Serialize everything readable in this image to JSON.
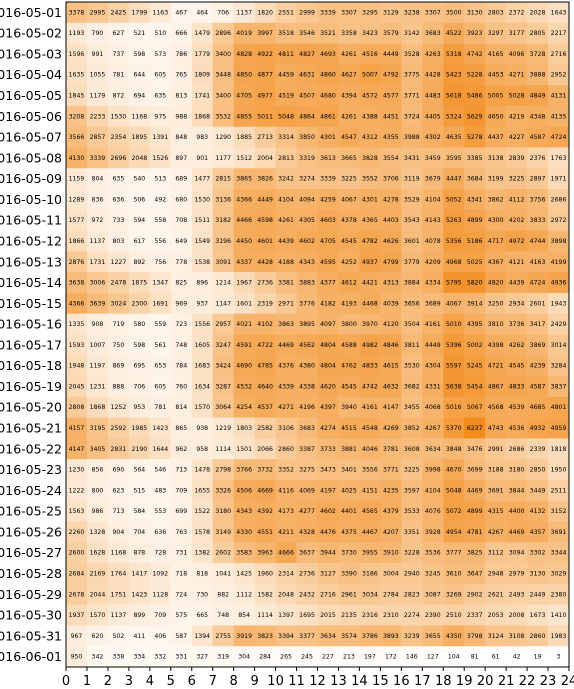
{
  "chart_data": {
    "type": "heatmap",
    "title": "",
    "xlabel": "",
    "ylabel": "",
    "x_ticks": [
      0,
      1,
      2,
      3,
      4,
      5,
      6,
      7,
      8,
      9,
      10,
      11,
      12,
      13,
      14,
      15,
      16,
      17,
      18,
      19,
      20,
      21,
      22,
      23,
      24
    ],
    "xlim": [
      0,
      24
    ],
    "color_scale": {
      "low": "#ffffff",
      "high": "#f28a1a",
      "min": 0,
      "max": 6300
    },
    "rows": [
      "2016-05-01",
      "2016-05-02",
      "2016-05-03",
      "2016-05-04",
      "2016-05-05",
      "2016-05-06",
      "2016-05-07",
      "2016-05-08",
      "2016-05-09",
      "2016-05-10",
      "2016-05-11",
      "2016-05-12",
      "2016-05-13",
      "2016-05-14",
      "2016-05-15",
      "2016-05-16",
      "2016-05-17",
      "2016-05-18",
      "2016-05-19",
      "2016-05-20",
      "2016-05-21",
      "2016-05-22",
      "2016-05-23",
      "2016-05-24",
      "2016-05-25",
      "2016-05-26",
      "2016-05-27",
      "2016-05-28",
      "2016-05-29",
      "2016-05-30",
      "2016-05-31",
      "2016-06-01"
    ],
    "values": [
      [
        3378,
        2995,
        2425,
        1799,
        1163,
        467,
        464,
        706,
        1137,
        1820,
        2551,
        2999,
        3339,
        3307,
        3295,
        3129,
        3238,
        3307,
        3500,
        3130,
        2803,
        2372,
        2028,
        1643
      ],
      [
        1193,
        790,
        627,
        521,
        510,
        666,
        1479,
        2896,
        4019,
        3997,
        3518,
        3546,
        3521,
        3358,
        3423,
        3579,
        3142,
        3683,
        4522,
        3923,
        3297,
        3177,
        2805,
        2217
      ],
      [
        1596,
        991,
        737,
        598,
        573,
        786,
        1779,
        3400,
        4828,
        4922,
        4811,
        4827,
        4693,
        4261,
        4516,
        4449,
        3528,
        4263,
        5318,
        4742,
        4165,
        4096,
        3728,
        2716
      ],
      [
        1635,
        1055,
        781,
        644,
        605,
        765,
        1809,
        3448,
        4850,
        4877,
        4459,
        4631,
        4860,
        4627,
        5007,
        4792,
        3775,
        4428,
        5423,
        5228,
        4453,
        4271,
        3888,
        2952
      ],
      [
        1845,
        1179,
        872,
        694,
        635,
        813,
        1741,
        3400,
        4705,
        4977,
        4519,
        4507,
        4680,
        4394,
        4572,
        4577,
        3771,
        4483,
        5618,
        5486,
        5005,
        5028,
        4849,
        4131
      ],
      [
        3208,
        2233,
        1530,
        1168,
        975,
        988,
        1868,
        3532,
        4855,
        5011,
        5048,
        4864,
        4861,
        4261,
        4388,
        4451,
        3724,
        4405,
        5324,
        5629,
        4650,
        4219,
        4348,
        4135
      ],
      [
        3566,
        2857,
        2354,
        1895,
        1391,
        848,
        983,
        1290,
        1885,
        2713,
        3314,
        3850,
        4301,
        4547,
        4312,
        4355,
        3988,
        4302,
        4635,
        5278,
        4437,
        4227,
        4587,
        4724
      ],
      [
        4130,
        3339,
        2696,
        2048,
        1526,
        897,
        901,
        1177,
        1512,
        2004,
        2813,
        3319,
        3613,
        3665,
        3828,
        3554,
        3431,
        3459,
        3595,
        3385,
        3138,
        2839,
        2376,
        1763
      ],
      [
        1159,
        804,
        635,
        540,
        513,
        689,
        1477,
        2815,
        3865,
        3826,
        3242,
        3274,
        3339,
        3225,
        3552,
        3706,
        3119,
        3679,
        4447,
        3684,
        3199,
        3225,
        2897,
        1971
      ],
      [
        1289,
        836,
        636,
        506,
        492,
        680,
        1530,
        3136,
        4366,
        4449,
        4104,
        4094,
        4259,
        4067,
        4301,
        4278,
        3529,
        4104,
        5052,
        4341,
        3862,
        4112,
        3756,
        2686
      ],
      [
        1577,
        972,
        733,
        594,
        558,
        708,
        1511,
        3182,
        4466,
        4598,
        4261,
        4305,
        4603,
        4378,
        4365,
        4403,
        3543,
        4143,
        5263,
        4899,
        4300,
        4202,
        3833,
        2972
      ],
      [
        1866,
        1137,
        803,
        617,
        556,
        649,
        1549,
        3196,
        4450,
        4601,
        4439,
        4602,
        4705,
        4545,
        4782,
        4626,
        3601,
        4078,
        5356,
        5186,
        4717,
        4972,
        4744,
        3898
      ],
      [
        2876,
        1731,
        1227,
        892,
        756,
        778,
        1538,
        3091,
        4337,
        4428,
        4188,
        4343,
        4595,
        4252,
        4937,
        4799,
        3779,
        4209,
        4968,
        5025,
        4367,
        4121,
        4163,
        4199
      ],
      [
        3638,
        3006,
        2478,
        1875,
        1347,
        825,
        896,
        1214,
        1967,
        2736,
        3381,
        3883,
        4377,
        4612,
        4421,
        4313,
        3884,
        4334,
        5795,
        5820,
        4820,
        4439,
        4724,
        4936
      ],
      [
        4366,
        3639,
        3024,
        2300,
        1691,
        969,
        937,
        1147,
        1601,
        2319,
        2971,
        3776,
        4182,
        4193,
        4468,
        4039,
        3656,
        3689,
        4067,
        3914,
        3250,
        2934,
        2601,
        1943
      ],
      [
        1335,
        908,
        719,
        580,
        559,
        723,
        1556,
        2957,
        4021,
        4102,
        3863,
        3895,
        4097,
        3800,
        3970,
        4120,
        3504,
        4161,
        5010,
        4395,
        3810,
        3736,
        3417,
        2429
      ],
      [
        1593,
        1007,
        750,
        598,
        561,
        748,
        1605,
        3247,
        4591,
        4722,
        4469,
        4562,
        4804,
        4588,
        4982,
        4846,
        3811,
        4449,
        5396,
        5002,
        4398,
        4262,
        3869,
        3014
      ],
      [
        1948,
        1197,
        869,
        695,
        653,
        784,
        1683,
        3424,
        4690,
        4785,
        4376,
        4380,
        4804,
        4762,
        4833,
        4615,
        3530,
        4304,
        5597,
        5245,
        4721,
        4545,
        4239,
        3284
      ],
      [
        2045,
        1231,
        888,
        706,
        605,
        760,
        1634,
        3287,
        4532,
        4640,
        4339,
        4338,
        4620,
        4545,
        4742,
        4632,
        3682,
        4331,
        5638,
        5454,
        4867,
        4833,
        4587,
        3837
      ],
      [
        2808,
        1868,
        1252,
        953,
        781,
        814,
        1570,
        3064,
        4254,
        4537,
        4271,
        4196,
        4397,
        3940,
        4161,
        4147,
        3455,
        4068,
        5016,
        5067,
        4568,
        4539,
        4685,
        4801
      ],
      [
        4157,
        3195,
        2592,
        1985,
        1423,
        865,
        938,
        1219,
        1803,
        2582,
        3106,
        3683,
        4274,
        4515,
        4548,
        4269,
        3852,
        4267,
        5370,
        6237,
        4743,
        4536,
        4932,
        4959
      ],
      [
        4147,
        3405,
        2831,
        2190,
        1644,
        962,
        958,
        1114,
        1501,
        2066,
        2860,
        3387,
        3733,
        3881,
        4046,
        3781,
        3608,
        3634,
        3848,
        3476,
        2991,
        2686,
        2339,
        1818
      ],
      [
        1230,
        856,
        690,
        564,
        546,
        713,
        1478,
        2798,
        3766,
        3732,
        3352,
        3275,
        3473,
        3401,
        3556,
        3771,
        3225,
        3998,
        4670,
        3699,
        3188,
        3180,
        2850,
        1950
      ],
      [
        1222,
        800,
        623,
        515,
        483,
        709,
        1655,
        3326,
        4506,
        4669,
        4116,
        4069,
        4197,
        4025,
        4151,
        4235,
        3597,
        4104,
        5048,
        4469,
        3691,
        3844,
        3449,
        2511
      ],
      [
        1563,
        986,
        713,
        584,
        553,
        699,
        1522,
        3180,
        4343,
        4392,
        4173,
        4277,
        4602,
        4401,
        4565,
        4379,
        3533,
        4076,
        5072,
        4899,
        4315,
        4400,
        4132,
        3152
      ],
      [
        2260,
        1328,
        904,
        704,
        636,
        763,
        1578,
        3149,
        4330,
        4551,
        4211,
        4328,
        4476,
        4375,
        4467,
        4207,
        3351,
        3928,
        4954,
        4781,
        4267,
        4469,
        4357,
        3691
      ],
      [
        2600,
        1628,
        1168,
        878,
        728,
        731,
        1382,
        2602,
        3583,
        3963,
        4666,
        3637,
        3944,
        3730,
        3955,
        3910,
        3228,
        3536,
        3777,
        3825,
        3112,
        3094,
        3302,
        3344
      ],
      [
        2684,
        2169,
        1764,
        1417,
        1092,
        718,
        818,
        1041,
        1425,
        1960,
        2314,
        2736,
        3127,
        3390,
        3186,
        3004,
        2940,
        3245,
        3610,
        3647,
        2948,
        2979,
        3130,
        3029
      ],
      [
        2678,
        2044,
        1751,
        1423,
        1128,
        724,
        730,
        882,
        1112,
        1582,
        2048,
        2432,
        2716,
        2961,
        3034,
        2784,
        2823,
        3087,
        3269,
        2902,
        2621,
        2493,
        2449,
        2380
      ],
      [
        1937,
        1570,
        1137,
        899,
        709,
        575,
        665,
        748,
        854,
        1114,
        1397,
        1695,
        2015,
        2135,
        2316,
        2310,
        2274,
        2390,
        2510,
        2337,
        2053,
        2008,
        1673,
        1410
      ],
      [
        967,
        620,
        502,
        411,
        406,
        587,
        1394,
        2755,
        3919,
        3823,
        3394,
        3377,
        3634,
        3574,
        3786,
        3893,
        3239,
        3655,
        4350,
        3798,
        3124,
        3108,
        2860,
        1983
      ],
      [
        950,
        342,
        338,
        334,
        332,
        331,
        327,
        319,
        304,
        284,
        265,
        245,
        227,
        213,
        197,
        172,
        146,
        127,
        104,
        81,
        61,
        42,
        19,
        3
      ]
    ]
  }
}
